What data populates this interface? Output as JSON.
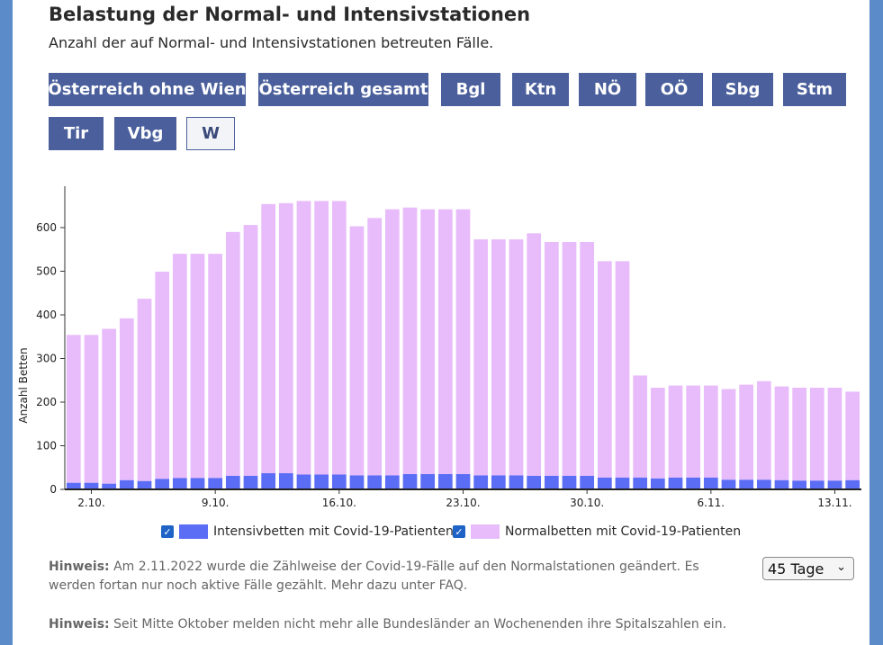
{
  "header": {
    "title": "Belastung der Normal- und Intensivstationen",
    "subtitle": "Anzahl der auf Normal- und Intensivstationen betreuten Fälle."
  },
  "region_buttons": [
    {
      "label": "Österreich ohne Wien",
      "active": false
    },
    {
      "label": "Österreich gesamt",
      "active": false
    },
    {
      "label": "Bgl",
      "active": false
    },
    {
      "label": "Ktn",
      "active": false
    },
    {
      "label": "NÖ",
      "active": false
    },
    {
      "label": "OÖ",
      "active": false
    },
    {
      "label": "Sbg",
      "active": false
    },
    {
      "label": "Stm",
      "active": false
    },
    {
      "label": "Tir",
      "active": false
    },
    {
      "label": "Vbg",
      "active": false
    },
    {
      "label": "W",
      "active": true
    }
  ],
  "chart_data": {
    "type": "bar",
    "stacked": true,
    "ylabel": "Anzahl Betten",
    "ylim": [
      0,
      700
    ],
    "yticks": [
      0,
      100,
      200,
      300,
      400,
      500,
      600
    ],
    "categories": [
      "1.10.",
      "2.10.",
      "3.10.",
      "4.10.",
      "5.10.",
      "6.10.",
      "7.10.",
      "8.10.",
      "9.10.",
      "10.10.",
      "11.10.",
      "12.10.",
      "13.10.",
      "14.10.",
      "15.10.",
      "16.10.",
      "17.10.",
      "18.10.",
      "19.10.",
      "20.10.",
      "21.10.",
      "22.10.",
      "23.10.",
      "24.10.",
      "25.10.",
      "26.10.",
      "27.10.",
      "28.10.",
      "29.10.",
      "30.10.",
      "31.10.",
      "1.11.",
      "2.11.",
      "3.11.",
      "4.11.",
      "5.11.",
      "6.11.",
      "7.11.",
      "8.11.",
      "9.11.",
      "10.11.",
      "11.11.",
      "12.11.",
      "13.11.",
      "14.11."
    ],
    "xtick_labels": [
      "2.10.",
      "9.10.",
      "16.10.",
      "23.10.",
      "30.10.",
      "6.11.",
      "13.11."
    ],
    "series": [
      {
        "name": "Intensivbetten mit Covid-19-Patienten",
        "color": "#5b6cf5",
        "values": [
          15,
          15,
          13,
          21,
          19,
          24,
          26,
          26,
          26,
          31,
          31,
          37,
          37,
          34,
          34,
          34,
          32,
          32,
          32,
          35,
          35,
          35,
          35,
          32,
          32,
          32,
          31,
          31,
          31,
          31,
          27,
          27,
          27,
          25,
          27,
          27,
          27,
          22,
          22,
          22,
          21,
          20,
          20,
          20,
          21
        ]
      },
      {
        "name": "Normalbetten mit Covid-19-Patienten",
        "color": "#e8bcfb",
        "values": [
          339,
          339,
          355,
          371,
          418,
          475,
          514,
          514,
          514,
          559,
          575,
          617,
          619,
          627,
          627,
          627,
          571,
          590,
          610,
          611,
          607,
          607,
          607,
          541,
          541,
          541,
          556,
          536,
          536,
          536,
          496,
          496,
          234,
          208,
          211,
          211,
          211,
          208,
          218,
          226,
          215,
          213,
          213,
          213,
          203
        ]
      }
    ],
    "legend_position": "bottom"
  },
  "legend": {
    "items": [
      {
        "label": "Intensivbetten mit Covid-19-Patienten",
        "color": "#5b6cf5",
        "checked": true
      },
      {
        "label": "Normalbetten mit Covid-19-Patienten",
        "color": "#e8bcfb",
        "checked": true
      }
    ]
  },
  "notes": [
    {
      "label": "Hinweis:",
      "text": " Am 2.11.2022 wurde die Zählweise der Covid-19-Fälle auf den Normalstationen geändert. Es werden fortan nur noch aktive Fälle gezählt. Mehr dazu unter FAQ."
    },
    {
      "label": "Hinweis:",
      "text": " Seit Mitte Oktober melden nicht mehr alle Bundesländer an Wochenenden ihre Spitalszahlen ein."
    }
  ],
  "range_select": {
    "value": "45 Tage"
  },
  "icons": {
    "checkbox": "check-icon",
    "dropdown": "chevron-down-icon"
  }
}
